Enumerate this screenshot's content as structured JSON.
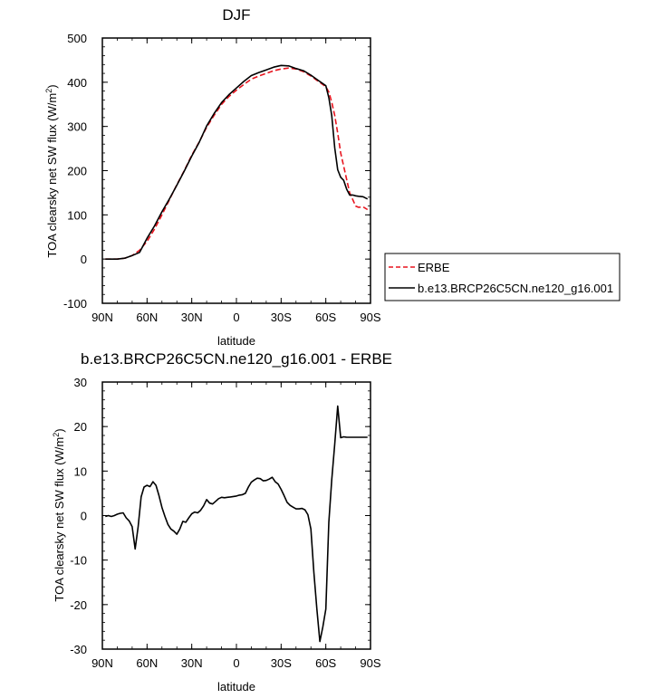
{
  "chart_data": [
    {
      "type": "line",
      "title": "DJF",
      "xlabel": "latitude",
      "ylabel": "TOA clearsky net SW flux (W/m",
      "ylabel_superscript": "2",
      "ylabel_close": ")",
      "xlim": [
        -90,
        90
      ],
      "ylim": [
        -100,
        500
      ],
      "xticks": [
        {
          "value": -90,
          "label": "90N"
        },
        {
          "value": -60,
          "label": "60N"
        },
        {
          "value": -30,
          "label": "30N"
        },
        {
          "value": 0,
          "label": "0"
        },
        {
          "value": 30,
          "label": "30S"
        },
        {
          "value": 60,
          "label": "60S"
        },
        {
          "value": 90,
          "label": "90S"
        }
      ],
      "yticks": [
        {
          "value": -100,
          "label": "-100"
        },
        {
          "value": 0,
          "label": "0"
        },
        {
          "value": 100,
          "label": "100"
        },
        {
          "value": 200,
          "label": "200"
        },
        {
          "value": 300,
          "label": "300"
        },
        {
          "value": 400,
          "label": "400"
        },
        {
          "value": 500,
          "label": "500"
        }
      ],
      "legend": {
        "placement": "right",
        "entries": [
          {
            "label": "ERBE",
            "color": "#e8141e",
            "dash": true
          },
          {
            "label": "b.e13.BRCP26C5CN.ne120_g16.001",
            "color": "#000000",
            "dash": false
          }
        ]
      },
      "series": [
        {
          "name": "ERBE",
          "color": "#e8141e",
          "dash": true,
          "x": [
            -88,
            -80,
            -75,
            -70,
            -65,
            -60,
            -55,
            -50,
            -45,
            -40,
            -35,
            -30,
            -25,
            -20,
            -15,
            -10,
            -5,
            0,
            5,
            10,
            15,
            20,
            25,
            30,
            35,
            40,
            45,
            50,
            55,
            60,
            62,
            64,
            66,
            68,
            70,
            72,
            74,
            76,
            78,
            80,
            82,
            85,
            88
          ],
          "y": [
            0,
            0,
            2,
            8,
            20,
            40,
            68,
            100,
            134,
            168,
            200,
            235,
            265,
            298,
            325,
            350,
            368,
            382,
            395,
            407,
            414,
            420,
            426,
            430,
            432,
            430,
            424,
            414,
            402,
            390,
            378,
            355,
            325,
            285,
            240,
            210,
            180,
            150,
            135,
            120,
            117,
            118,
            112
          ]
        },
        {
          "name": "b.e13.BRCP26C5CN.ne120_g16.001",
          "color": "#000000",
          "dash": false,
          "x": [
            -88,
            -80,
            -75,
            -70,
            -65,
            -60,
            -55,
            -50,
            -45,
            -40,
            -35,
            -30,
            -25,
            -20,
            -15,
            -10,
            -5,
            0,
            5,
            10,
            15,
            20,
            25,
            30,
            35,
            40,
            45,
            50,
            55,
            60,
            62,
            64,
            66,
            68,
            70,
            72,
            74,
            76,
            78,
            80,
            82,
            85,
            88
          ],
          "y": [
            0,
            0,
            2,
            8,
            15,
            47,
            75,
            107,
            136,
            167,
            199,
            233,
            264,
            301,
            329,
            354,
            372,
            387,
            402,
            415,
            422,
            428,
            434,
            438,
            437,
            431,
            426,
            416,
            404,
            392,
            365,
            325,
            252,
            202,
            185,
            178,
            158,
            145,
            145,
            143,
            142,
            141,
            136
          ]
        }
      ]
    },
    {
      "type": "line",
      "title": "b.e13.BRCP26C5CN.ne120_g16.001 - ERBE",
      "xlabel": "latitude",
      "ylabel": "TOA clearsky net SW flux (W/m",
      "ylabel_superscript": "2",
      "ylabel_close": ")",
      "xlim": [
        -90,
        90
      ],
      "ylim": [
        -30,
        30
      ],
      "xticks": [
        {
          "value": -90,
          "label": "90N"
        },
        {
          "value": -60,
          "label": "60N"
        },
        {
          "value": -30,
          "label": "30N"
        },
        {
          "value": 0,
          "label": "0"
        },
        {
          "value": 30,
          "label": "30S"
        },
        {
          "value": 60,
          "label": "60S"
        },
        {
          "value": 90,
          "label": "90S"
        }
      ],
      "yticks": [
        {
          "value": -30,
          "label": "-30"
        },
        {
          "value": -20,
          "label": "-20"
        },
        {
          "value": -10,
          "label": "-10"
        },
        {
          "value": 0,
          "label": "0"
        },
        {
          "value": 10,
          "label": "10"
        },
        {
          "value": 20,
          "label": "20"
        },
        {
          "value": 30,
          "label": "30"
        }
      ],
      "series": [
        {
          "color": "#000000",
          "dash": false,
          "x": [
            -88,
            -86,
            -84,
            -82,
            -80,
            -78,
            -76,
            -74,
            -72,
            -70,
            -68,
            -66,
            -64,
            -62,
            -60,
            -58,
            -56,
            -54,
            -52,
            -50,
            -48,
            -46,
            -44,
            -42,
            -40,
            -38,
            -36,
            -34,
            -32,
            -30,
            -28,
            -26,
            -24,
            -22,
            -20,
            -18,
            -16,
            -14,
            -12,
            -10,
            -8,
            -6,
            -4,
            -2,
            0,
            2,
            4,
            6,
            8,
            10,
            12,
            14,
            16,
            18,
            20,
            22,
            24,
            26,
            28,
            30,
            32,
            34,
            36,
            38,
            40,
            42,
            44,
            46,
            48,
            50,
            52,
            54,
            56,
            58,
            60,
            62,
            64,
            66,
            68,
            70,
            72,
            74,
            76,
            78,
            80,
            82,
            84,
            86,
            88
          ],
          "y": [
            -0.2,
            0,
            -0.2,
            0,
            0.3,
            0.5,
            0.6,
            -0.5,
            -1.2,
            -2.5,
            -7.5,
            -2.5,
            4.2,
            6.4,
            6.8,
            6.5,
            7.6,
            6.8,
            4.5,
            1.8,
            -0.2,
            -2,
            -3,
            -3.5,
            -4.2,
            -3,
            -1.3,
            -1.5,
            -0.5,
            0.4,
            0.8,
            0.6,
            1.2,
            2.2,
            3.6,
            2.8,
            2.6,
            3.2,
            3.8,
            4.1,
            4,
            4.1,
            4.2,
            4.3,
            4.4,
            4.6,
            4.7,
            5,
            6.4,
            7.5,
            8,
            8.4,
            8.3,
            7.8,
            7.9,
            8.2,
            8.6,
            7.6,
            7.1,
            5.9,
            4.5,
            3,
            2.3,
            1.9,
            1.5,
            1.5,
            1.6,
            1.3,
            0.2,
            -3,
            -12.8,
            -21,
            -28.3,
            -25,
            -21,
            -1.5,
            8,
            16,
            24.6,
            17.5,
            17.7,
            17.6,
            17.6,
            17.6,
            17.6,
            17.6,
            17.6,
            17.6,
            17.6
          ]
        }
      ]
    }
  ]
}
